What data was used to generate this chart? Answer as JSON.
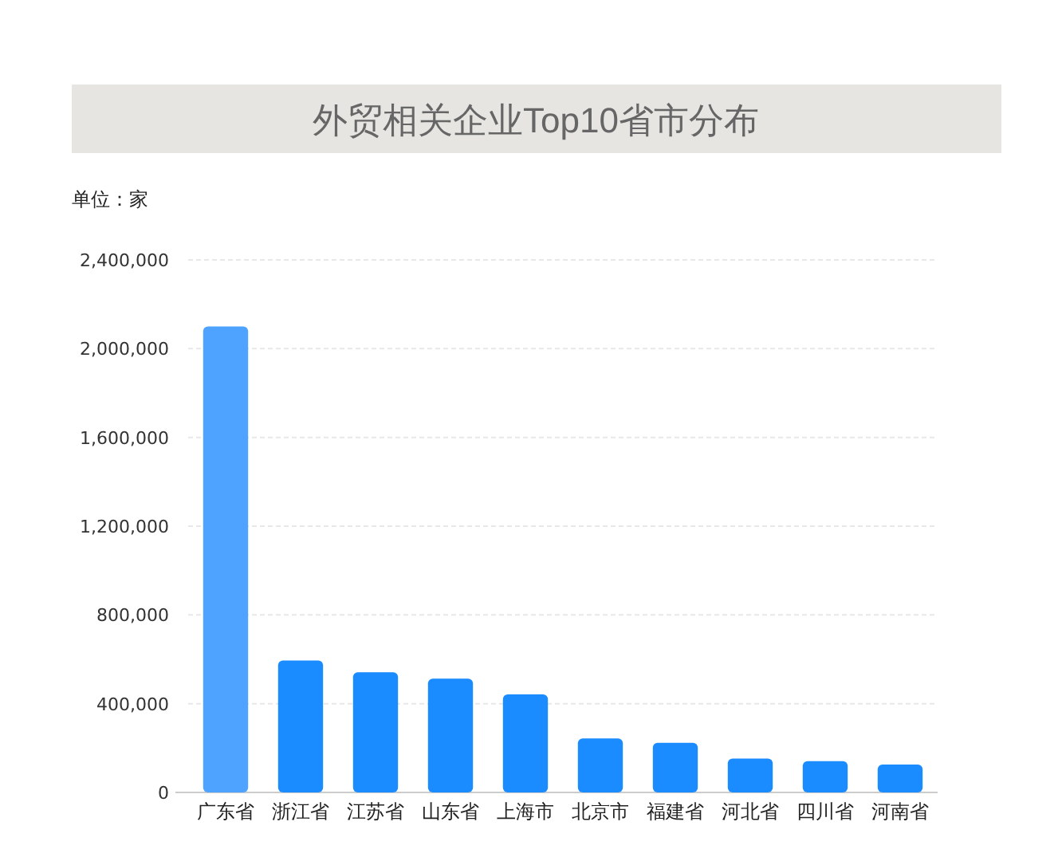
{
  "chart_data": {
    "type": "bar",
    "title": "外贸相关企业Top10省市分布",
    "ylabel": "单位：家",
    "categories": [
      "广东省",
      "浙江省",
      "江苏省",
      "山东省",
      "上海市",
      "北京市",
      "福建省",
      "河北省",
      "四川省",
      "河南省"
    ],
    "values": [
      2100000,
      595000,
      542000,
      513000,
      442000,
      243000,
      224000,
      153000,
      141000,
      126000
    ],
    "colors": [
      "#4da3ff",
      "#1a8cff",
      "#1a8cff",
      "#1a8cff",
      "#1a8cff",
      "#1a8cff",
      "#1a8cff",
      "#1a8cff",
      "#1a8cff",
      "#1a8cff"
    ],
    "ylim": [
      0,
      2400000
    ],
    "yticks": [
      0,
      {
        "value": 400000,
        "label": "400,000"
      },
      {
        "value": 800000,
        "label": "800,000"
      },
      {
        "value": 1200000,
        "label": "1,200,000"
      },
      {
        "value": 1600000,
        "label": "1,600,000"
      },
      {
        "value": 2000000,
        "label": "2,000,000"
      },
      {
        "value": 2400000,
        "label": "2,400,000"
      }
    ],
    "grid": "y"
  }
}
